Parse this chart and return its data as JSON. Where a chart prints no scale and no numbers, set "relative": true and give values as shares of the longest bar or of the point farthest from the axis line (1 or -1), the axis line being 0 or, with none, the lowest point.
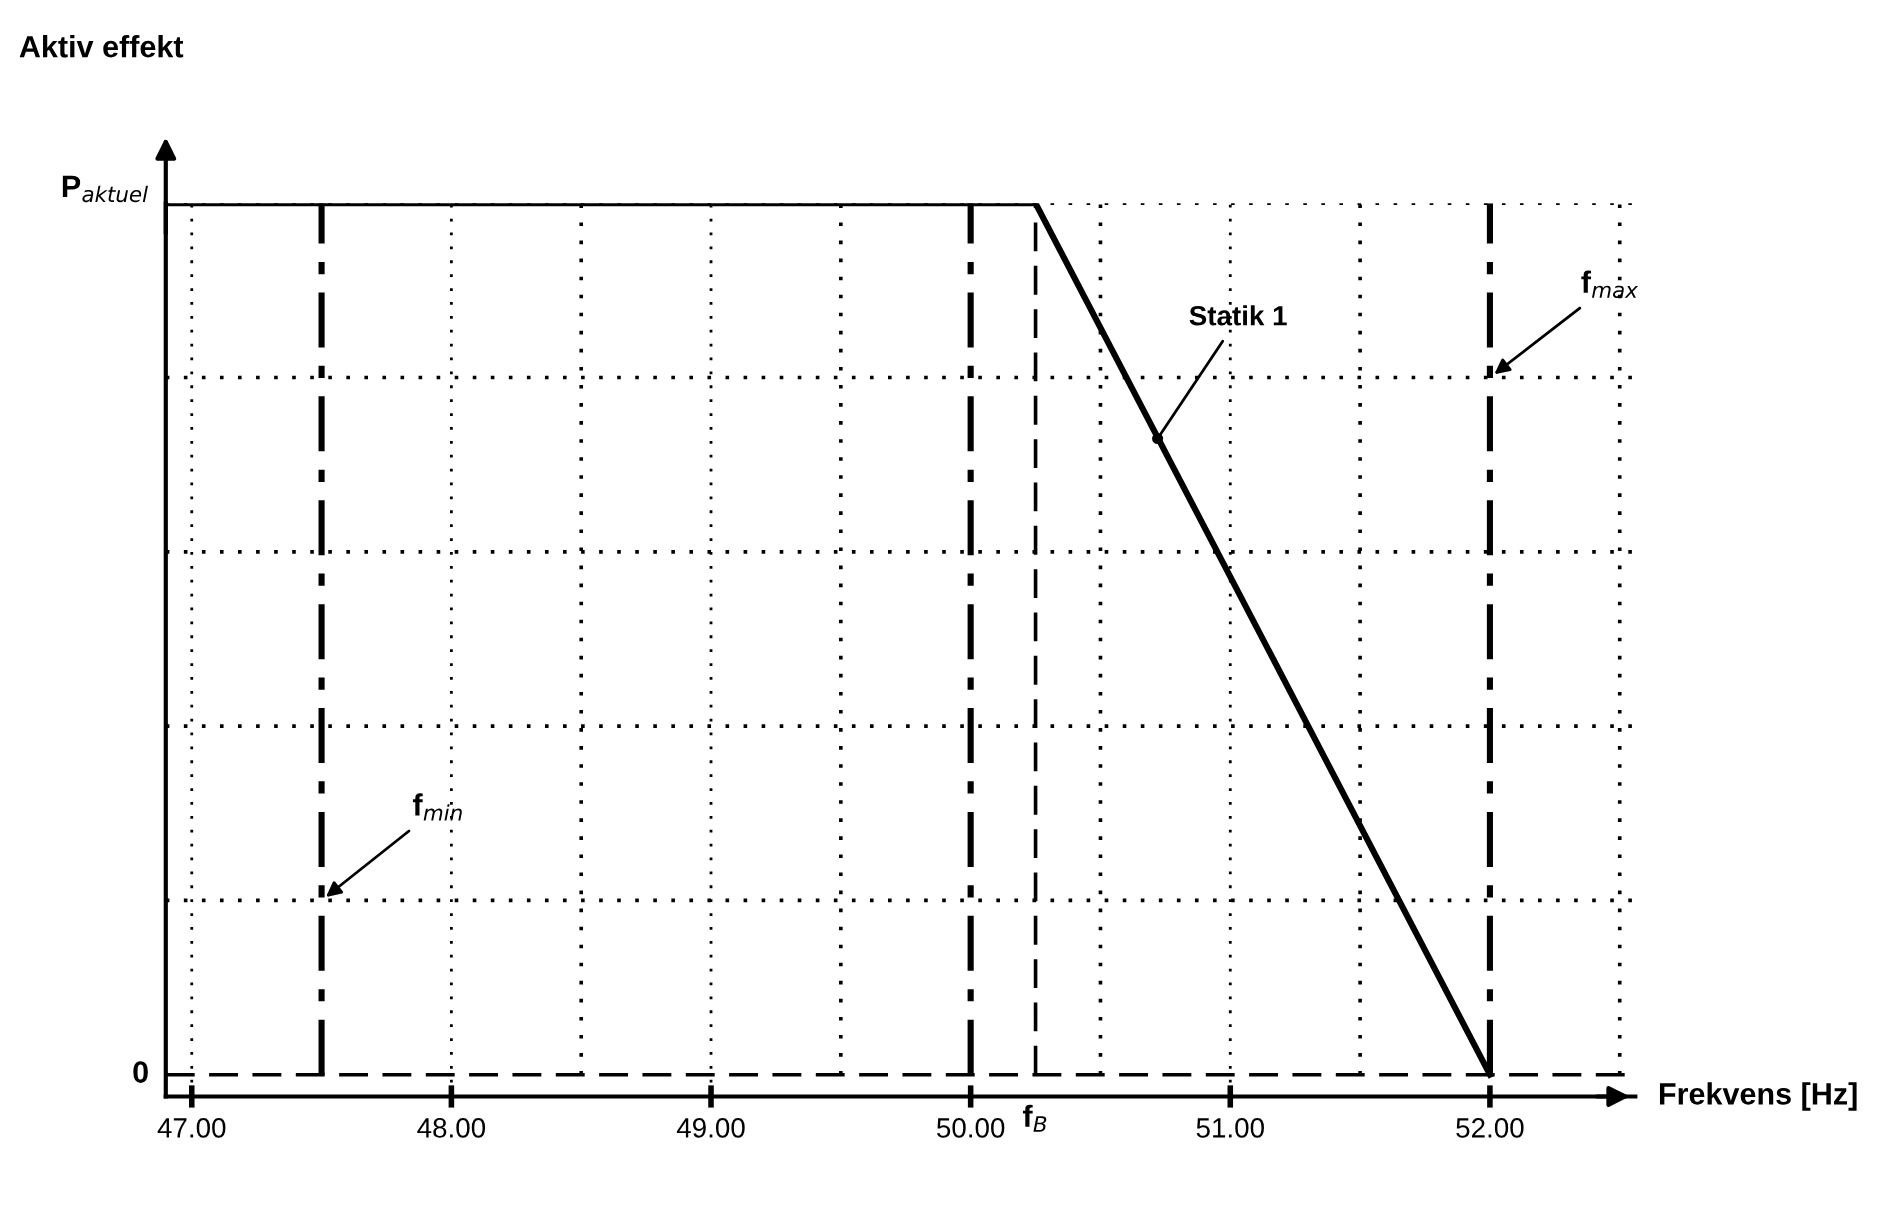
{
  "chart_data": {
    "type": "line",
    "xlabel": "Frekvens [Hz]",
    "ylabel": "Aktiv effekt",
    "relative": true,
    "series": [
      {
        "color": "#000000",
        "x": [
          46.9,
          50.25,
          52.0
        ],
        "values": [
          1,
          1,
          0
        ]
      }
    ],
    "xlim": [
      46.9,
      52.56
    ],
    "xticks": [
      {
        "value": 47,
        "label": "47.00"
      },
      {
        "value": 48,
        "label": "48.00"
      },
      {
        "value": 49,
        "label": "49.00"
      },
      {
        "value": 50,
        "label": "50.00"
      },
      {
        "value": 51,
        "label": "51.00"
      },
      {
        "value": 52,
        "label": "52.00"
      }
    ],
    "grid": "x",
    "line_style": "solid",
    "marker": "none",
    "ref_lines": [
      {
        "axis": "x",
        "value": 47.5,
        "label": "f$_{min}$",
        "line_style": "dashdot"
      },
      {
        "axis": "x",
        "value": 50,
        "label": null,
        "line_style": "dashdot"
      },
      {
        "axis": "x",
        "value": 50.25,
        "label": "f$_{B}$",
        "line_style": "dashed"
      },
      {
        "axis": "x",
        "value": 52,
        "label": "f$_{max}$",
        "line_style": "dashdot"
      },
      {
        "axis": "x",
        "value": 48.5,
        "label": null,
        "line_style": "dotted"
      },
      {
        "axis": "x",
        "value": 49.5,
        "label": null,
        "line_style": "dotted"
      },
      {
        "axis": "x",
        "value": 50.5,
        "label": null,
        "line_style": "dotted"
      },
      {
        "axis": "x",
        "value": 51.5,
        "label": null,
        "line_style": "dotted"
      },
      {
        "axis": "x",
        "value": 52.5,
        "label": null,
        "line_style": "dotted"
      },
      {
        "axis": "y",
        "value": 0,
        "label": "0",
        "line_style": "dashed"
      },
      {
        "axis": "y",
        "value": 0.2,
        "label": null,
        "line_style": "dotted"
      },
      {
        "axis": "y",
        "value": 0.4,
        "label": null,
        "line_style": "dotted"
      },
      {
        "axis": "y",
        "value": 0.6,
        "label": null,
        "line_style": "dotted"
      },
      {
        "axis": "y",
        "value": 0.8,
        "label": null,
        "line_style": "dotted"
      },
      {
        "axis": "y",
        "value": 1,
        "label": "P$_{aktuel}$",
        "line_style": "dotted"
      }
    ],
    "annotations": [
      {
        "text": "Statik 1",
        "x": 50.72,
        "y": 0.73
      }
    ]
  }
}
